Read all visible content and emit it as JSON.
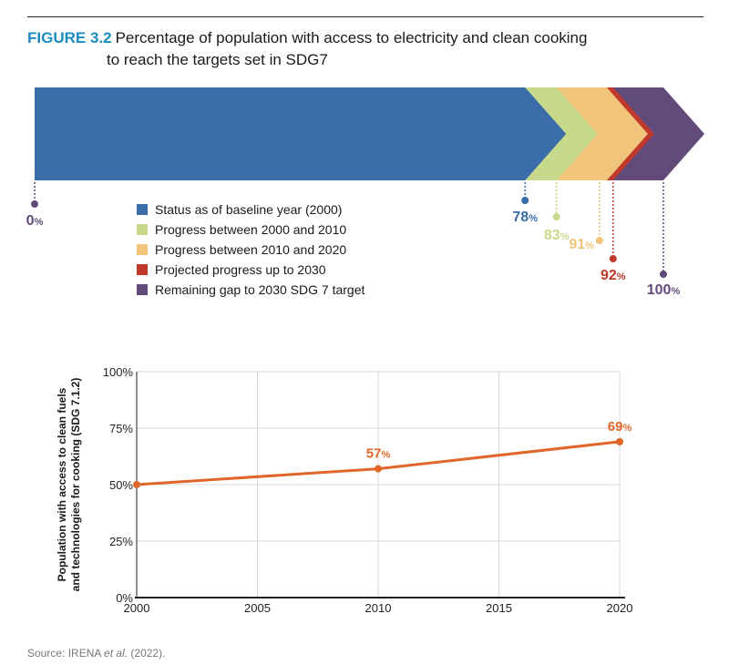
{
  "figure": {
    "label": "FIGURE 3.2",
    "title_line1": "Percentage of population with access to electricity and clean cooking",
    "title_line2": "to reach the targets set in SDG7"
  },
  "source": {
    "prefix": "Source: IRENA ",
    "italic": "et al.",
    "suffix": " (2022)."
  },
  "chart_data": [
    {
      "type": "bar",
      "subtype": "stacked-arrow",
      "segments": [
        {
          "name": "Status as of baseline year (2000)",
          "end": 78,
          "end_label": "78",
          "color": "#3a6daa"
        },
        {
          "name": "Progress between 2000 and 2010",
          "end": 83,
          "end_label": "83",
          "color": "#c7d98a"
        },
        {
          "name": "Progress between 2010 and 2020",
          "end": 91,
          "end_label": "91",
          "color": "#f0c47a"
        },
        {
          "name": "Projected progress up to 2030",
          "end": 92,
          "end_label": "92",
          "color": "#c0392b"
        },
        {
          "name": "Remaining gap to 2030 SDG 7 target",
          "end": 100,
          "end_label": "100",
          "color": "#624a7a"
        }
      ],
      "start_label": "0",
      "unit": "%",
      "start_color": "#624a7a",
      "range": [
        0,
        100
      ]
    },
    {
      "type": "line",
      "x": [
        2000,
        2010,
        2020
      ],
      "y": [
        50,
        57,
        69
      ],
      "point_labels": [
        "",
        "57",
        "69"
      ],
      "unit": "%",
      "ylabel_line1": "Population with access to clean fuels",
      "ylabel_line2": "and technologies for cooking (SDG 7.1.2)",
      "xticks": [
        "2000",
        "2005",
        "2010",
        "2015",
        "2020"
      ],
      "xtick_values": [
        2000,
        2005,
        2010,
        2015,
        2020
      ],
      "yticks": [
        "0%",
        "25%",
        "50%",
        "75%",
        "100%"
      ],
      "ytick_values": [
        0,
        25,
        50,
        75,
        100
      ],
      "xlim": [
        2000,
        2020
      ],
      "ylim": [
        0,
        100
      ],
      "grid": true,
      "line_color": "#e0662a"
    }
  ]
}
